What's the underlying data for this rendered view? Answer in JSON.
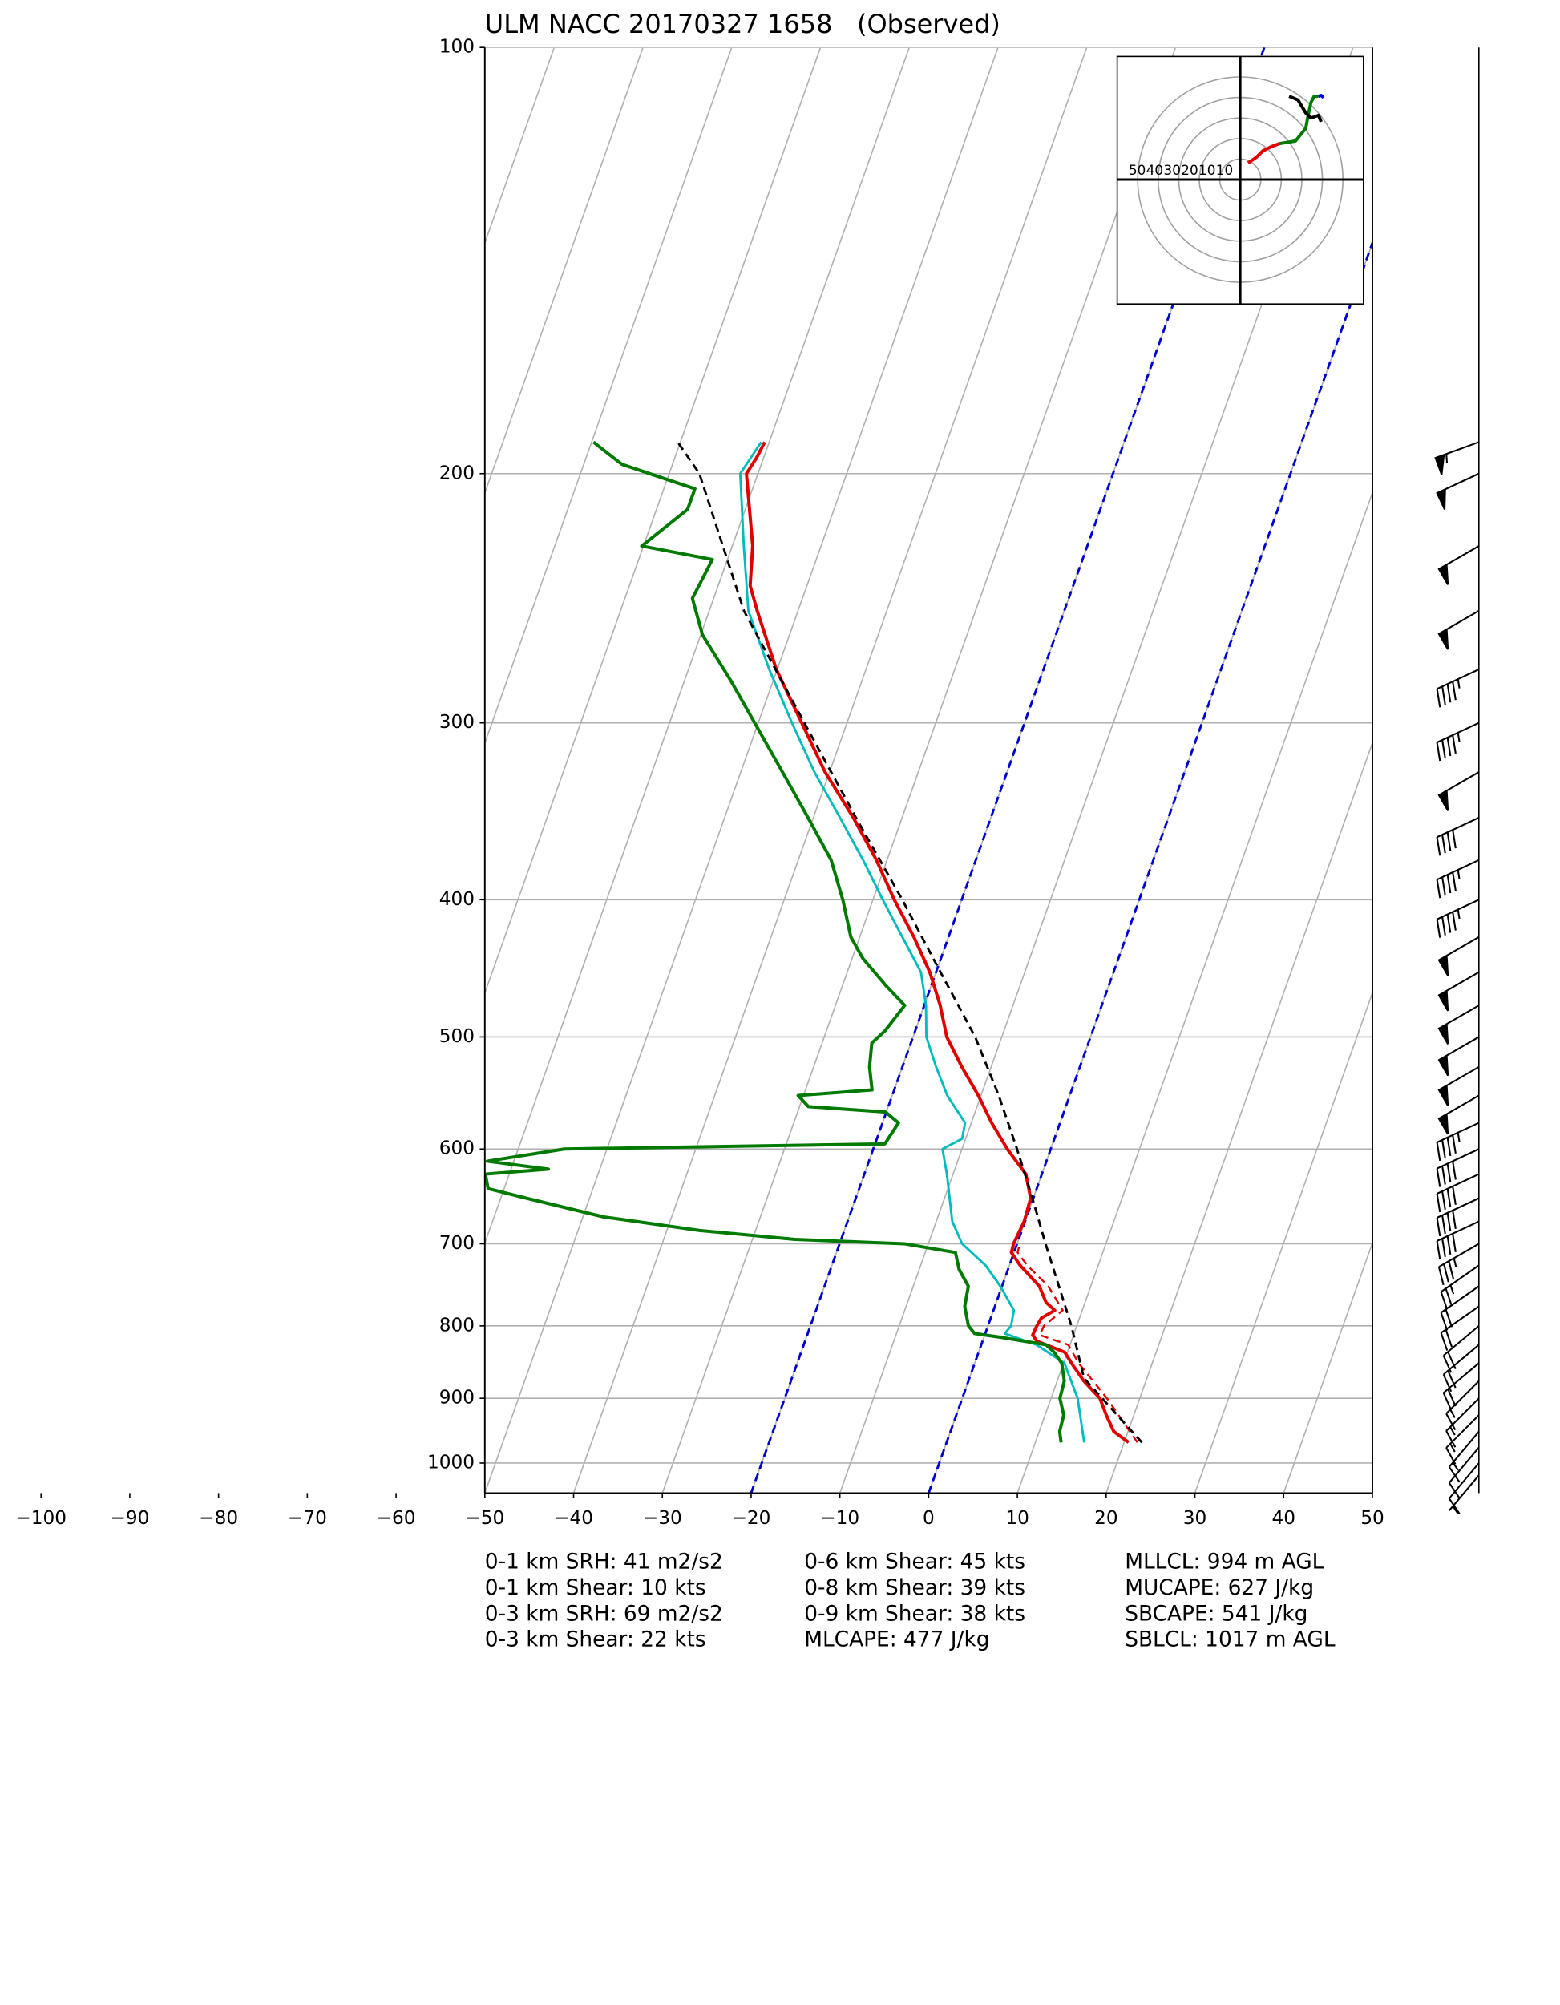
{
  "chart_data": {
    "type": "skewt",
    "title": "ULM NACC 20170327 1658   (Observed)",
    "log_y": true,
    "xlim": [
      -50,
      50
    ],
    "ylim": [
      1050,
      100
    ],
    "xticks": [
      {
        "value": -100,
        "label": "−100"
      },
      {
        "value": -90,
        "label": "−90"
      },
      {
        "value": -80,
        "label": "−80"
      },
      {
        "value": -70,
        "label": "−70"
      },
      {
        "value": -60,
        "label": "−60"
      },
      {
        "value": -50,
        "label": "−50"
      },
      {
        "value": -40,
        "label": "−40"
      },
      {
        "value": -30,
        "label": "−30"
      },
      {
        "value": -20,
        "label": "−20"
      },
      {
        "value": -10,
        "label": "−10"
      },
      0,
      10,
      20,
      30,
      40,
      50
    ],
    "yticks": [
      100,
      200,
      300,
      400,
      500,
      600,
      700,
      800,
      900,
      1000
    ],
    "grid": true,
    "isotherms": {
      "values": [
        -20,
        0
      ],
      "color": "#0000cc"
    },
    "series": [
      {
        "color": "#e00000",
        "linewidth": 2.5,
        "linestyle": "solid",
        "y": [
          967,
          950,
          925,
          900,
          875,
          850,
          835,
          820,
          812,
          800,
          790,
          780,
          770,
          750,
          725,
          710,
          700,
          675,
          650,
          625,
          600,
          575,
          550,
          525,
          500,
          475,
          450,
          425,
          400,
          375,
          350,
          325,
          300,
          275,
          250,
          240,
          225,
          200,
          195,
          190
        ],
        "x": [
          20.5,
          18.4,
          16.9,
          15.5,
          13,
          10.9,
          9.7,
          6.1,
          5.4,
          5.5,
          5.7,
          6.9,
          5.6,
          4.2,
          1.2,
          -0.3,
          -0.4,
          -0.1,
          -0.3,
          -1.8,
          -4.9,
          -7.7,
          -10.3,
          -13.3,
          -16.2,
          -18.2,
          -20.7,
          -23.9,
          -27.6,
          -31.2,
          -35.5,
          -40.5,
          -45.1,
          -50.1,
          -54.6,
          -56.4,
          -57.7,
          -61.3,
          -60.8,
          -60.5
        ]
      },
      {
        "color": "#e00000",
        "linewidth": 1.5,
        "linestyle": "dashed",
        "y": [
          967,
          900,
          850,
          825,
          812,
          800,
          780,
          750,
          725,
          710,
          700
        ],
        "x": [
          21.5,
          16.3,
          11.7,
          9.8,
          6.2,
          6.3,
          7.8,
          5.2,
          2,
          0.4,
          0.3
        ]
      },
      {
        "color": "#00bcbc",
        "linewidth": 1.8,
        "linestyle": "solid",
        "y": [
          967,
          900,
          850,
          825,
          810,
          800,
          780,
          750,
          725,
          700,
          675,
          625,
          600,
          590,
          575,
          550,
          525,
          500,
          475,
          450,
          425,
          400,
          375,
          350,
          325,
          300,
          275,
          250,
          225,
          200,
          190
        ],
        "x": [
          15.5,
          13,
          10.1,
          6.2,
          2.2,
          2.6,
          2.3,
          -0.2,
          -2.7,
          -6.2,
          -8.2,
          -10.7,
          -12.2,
          -10.4,
          -10.7,
          -13.8,
          -16.2,
          -18.5,
          -19.8,
          -21.7,
          -25.2,
          -28.9,
          -32.7,
          -37,
          -41.7,
          -46.2,
          -50.9,
          -55.6,
          -58.7,
          -62,
          -60.9
        ]
      },
      {
        "color": "#007a00",
        "linewidth": 2.5,
        "linestyle": "solid",
        "y": [
          967,
          950,
          925,
          900,
          875,
          850,
          835,
          825,
          815,
          810,
          800,
          775,
          750,
          730,
          710,
          700,
          695,
          685,
          670,
          650,
          640,
          625,
          620,
          612,
          600,
          595,
          575,
          565,
          560,
          550,
          545,
          525,
          505,
          495,
          475,
          460,
          440,
          425,
          400,
          375,
          350,
          325,
          300,
          280,
          260,
          245,
          230,
          225,
          212,
          205,
          197,
          190
        ],
        "x": [
          12.9,
          12.3,
          12.1,
          11,
          10.8,
          9.8,
          8.5,
          7.3,
          1.9,
          -1.2,
          -2.2,
          -3.4,
          -3.8,
          -5.5,
          -6.6,
          -12.7,
          -25.2,
          -36.3,
          -47.7,
          -57.1,
          -61.8,
          -62.7,
          -55.8,
          -63,
          -54.8,
          -18.9,
          -18.2,
          -20.1,
          -29,
          -30.6,
          -22.5,
          -23.7,
          -24.4,
          -23.4,
          -22.2,
          -25.1,
          -28.8,
          -31,
          -33.4,
          -36.3,
          -40.6,
          -45.3,
          -50.4,
          -54.8,
          -59.8,
          -62.4,
          -61.7,
          -70.2,
          -66.5,
          -66.5,
          -75.7,
          -79.8
        ]
      },
      {
        "color": "#000000",
        "linewidth": 1.8,
        "linestyle": "dashed",
        "y": [
          967,
          871,
          800,
          700,
          650,
          600,
          550,
          500,
          450,
          400,
          350,
          300,
          250,
          200,
          190
        ],
        "x": [
          22,
          12.9,
          9.4,
          3.2,
          -0.1,
          -3.8,
          -8,
          -13,
          -19.5,
          -26.7,
          -35.2,
          -44.8,
          -56.1,
          -66.6,
          -70.3
        ]
      }
    ],
    "wind_barbs": {
      "pressure": [
        190,
        200,
        225,
        250,
        275,
        300,
        325,
        350,
        375,
        400,
        425,
        450,
        475,
        500,
        525,
        550,
        575,
        600,
        625,
        650,
        675,
        700,
        725,
        750,
        775,
        800,
        825,
        850,
        875,
        900,
        925,
        950,
        975,
        1000,
        1020
      ],
      "speed": [
        55,
        50,
        50,
        50,
        45,
        45,
        50,
        40,
        45,
        45,
        50,
        50,
        50,
        50,
        50,
        50,
        45,
        40,
        40,
        40,
        40,
        35,
        25,
        20,
        20,
        20,
        20,
        20,
        15,
        15,
        15,
        15,
        10,
        10,
        5
      ],
      "direction": [
        250,
        245,
        240,
        240,
        245,
        245,
        240,
        245,
        245,
        245,
        240,
        240,
        240,
        240,
        240,
        240,
        245,
        245,
        245,
        245,
        245,
        240,
        235,
        235,
        235,
        230,
        230,
        230,
        225,
        225,
        225,
        220,
        220,
        220,
        220
      ]
    },
    "hodograph": {
      "lim": 60,
      "ring_labels": [
        50,
        40,
        30,
        20,
        10,
        10
      ],
      "segments": [
        {
          "color": "#e00000",
          "u": [
            3.8,
            8,
            11,
            15,
            19
          ],
          "v": [
            8.1,
            11,
            14,
            16,
            17.5
          ]
        },
        {
          "color": "#007a00",
          "u": [
            19,
            26.9,
            31.9,
            33,
            34.4,
            36,
            38
          ],
          "v": [
            17.5,
            18.8,
            25,
            31,
            37.5,
            40.6,
            40.6
          ]
        },
        {
          "color": "#0000ee",
          "u": [
            38,
            39.4,
            40.6
          ],
          "v": [
            40.6,
            41,
            40
          ]
        },
        {
          "color": "#000000",
          "u": [
            23.8,
            28.1,
            31.9,
            34.4,
            38.1,
            39.4
          ],
          "v": [
            40.6,
            38.8,
            32.5,
            30,
            31.3,
            28.1
          ]
        }
      ]
    },
    "annotations": [
      [
        "0-1 km SRH: 41 m2/s2",
        "0-1 km Shear: 10 kts",
        "0-3 km SRH: 69 m2/s2",
        "0-3 km Shear: 22 kts"
      ],
      [
        "0-6 km Shear: 45 kts",
        "0-8 km Shear: 39 kts",
        "0-9 km Shear: 38 kts",
        "MLCAPE: 477 J/kg"
      ],
      [
        "MLLCL: 994 m AGL",
        "MUCAPE: 627 J/kg",
        "SBCAPE: 541 J/kg",
        "SBLCL: 1017 m AGL"
      ]
    ]
  }
}
